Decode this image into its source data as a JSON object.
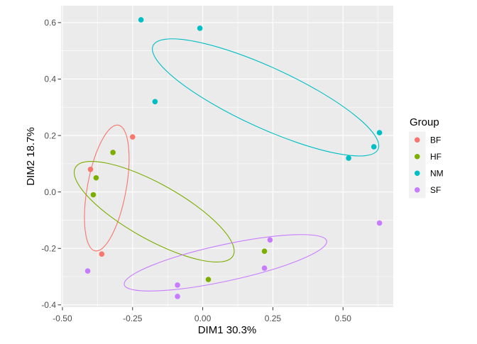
{
  "legend": {
    "title": "Group",
    "items": [
      {
        "label": "BF",
        "color": "#F8766D"
      },
      {
        "label": "HF",
        "color": "#7CAE00"
      },
      {
        "label": "NM",
        "color": "#00BFC4"
      },
      {
        "label": "SF",
        "color": "#C77CFF"
      }
    ]
  },
  "axes": {
    "x": {
      "range": [
        -0.505,
        0.679
      ],
      "ticks": [
        -0.5,
        -0.25,
        0,
        0.25,
        0.5
      ],
      "tick_labels": [
        "-0.50",
        "-0.25",
        "0.00",
        "0.25",
        "0.50"
      ],
      "minor_ticks": [
        -0.375,
        -0.125,
        0.125,
        0.375,
        0.625
      ]
    },
    "y": {
      "range": [
        -0.408,
        0.66
      ],
      "ticks": [
        -0.4,
        -0.2,
        0,
        0.2,
        0.4,
        0.6
      ],
      "tick_labels": [
        "-0.4",
        "-0.2",
        "0.0",
        "0.2",
        "0.4",
        "0.6"
      ],
      "minor_ticks": [
        -0.3,
        -0.1,
        0.1,
        0.3,
        0.5
      ]
    }
  },
  "chart_data": {
    "type": "scatter",
    "title": "",
    "xlabel": "DIM1 30.3%",
    "ylabel": "DIM2 18.7%",
    "xlim": [
      -0.505,
      0.679
    ],
    "ylim": [
      -0.408,
      0.66
    ],
    "grid": true,
    "legend_position": "right",
    "panel_background": "#EBEBEB",
    "gridline_color": "#FFFFFF",
    "series": [
      {
        "name": "BF",
        "color": "#F8766D",
        "points": [
          [
            -0.25,
            0.195
          ],
          [
            -0.4,
            0.08
          ],
          [
            -0.36,
            -0.22
          ]
        ],
        "ellipse": {
          "cx": -0.342,
          "cy": 0.014,
          "rx": 0.228,
          "ry": 0.069,
          "tilt_deg": 79.55
        }
      },
      {
        "name": "HF",
        "color": "#7CAE00",
        "points": [
          [
            -0.32,
            0.14
          ],
          [
            -0.38,
            0.05
          ],
          [
            -0.39,
            -0.01
          ],
          [
            0.02,
            -0.31
          ],
          [
            0.22,
            -0.21
          ]
        ],
        "ellipse": {
          "cx": -0.173,
          "cy": -0.07,
          "rx": 0.322,
          "ry": 0.099,
          "tilt_deg": -29.25
        }
      },
      {
        "name": "NM",
        "color": "#00BFC4",
        "points": [
          [
            -0.22,
            0.61
          ],
          [
            -0.01,
            0.58
          ],
          [
            -0.17,
            0.32
          ],
          [
            0.63,
            0.21
          ],
          [
            0.61,
            0.16
          ],
          [
            0.52,
            0.12
          ]
        ],
        "ellipse": {
          "cx": 0.224,
          "cy": 0.335,
          "rx": 0.4415,
          "ry": 0.1075,
          "tilt_deg": -24.72
        }
      },
      {
        "name": "SF",
        "color": "#C77CFF",
        "points": [
          [
            -0.41,
            -0.28
          ],
          [
            -0.09,
            -0.33
          ],
          [
            -0.09,
            -0.37
          ],
          [
            0.24,
            -0.17
          ],
          [
            0.22,
            -0.27
          ],
          [
            0.63,
            -0.11
          ]
        ],
        "ellipse": {
          "cx": 0.081,
          "cy": -0.251,
          "rx": 0.369,
          "ry": 0.065,
          "tilt_deg": 12.2
        }
      }
    ]
  }
}
